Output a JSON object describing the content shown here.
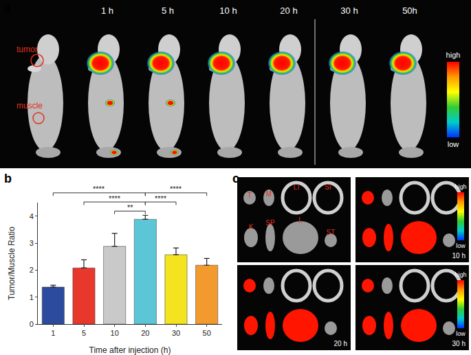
{
  "chart_data": {
    "type": "bar",
    "x_label": "Time after injection (h)",
    "y_label": "Tumor/Muscle Ratio",
    "categories": [
      "1",
      "5",
      "10",
      "20",
      "30",
      "50"
    ],
    "values": [
      1.37,
      2.08,
      2.88,
      3.88,
      2.57,
      2.18
    ],
    "errors": [
      0.07,
      0.3,
      0.48,
      0.15,
      0.25,
      0.25
    ],
    "colors": [
      "#2c4a9e",
      "#e8382b",
      "#c9c9c9",
      "#5cc6d6",
      "#f3e41f",
      "#f29a2e"
    ],
    "ylim": [
      0,
      4.5
    ],
    "yticks": [
      0,
      1,
      2,
      3,
      4
    ],
    "grid": false,
    "comparisons": [
      {
        "from": "1",
        "to": "20",
        "label": "****"
      },
      {
        "from": "5",
        "to": "20",
        "label": "****"
      },
      {
        "from": "10",
        "to": "20",
        "label": "**"
      },
      {
        "from": "20",
        "to": "30",
        "label": "****"
      },
      {
        "from": "20",
        "to": "50",
        "label": "****"
      }
    ]
  },
  "panel_labels": [
    "a",
    "b",
    "c"
  ],
  "panel_a": {
    "times": [
      "1 h",
      "5 h",
      "10 h",
      "20 h",
      "30 h",
      "50h"
    ],
    "regions": [
      "tumor",
      "muscle"
    ],
    "colorbar": [
      "high",
      "low"
    ]
  },
  "panel_c": {
    "organs": [
      "T",
      "M",
      "LI",
      "SI",
      "K",
      "SP",
      "L",
      "ST"
    ],
    "times": [
      "10 h",
      "20 h",
      "30 h"
    ],
    "colorbar": [
      "high",
      "low"
    ]
  }
}
